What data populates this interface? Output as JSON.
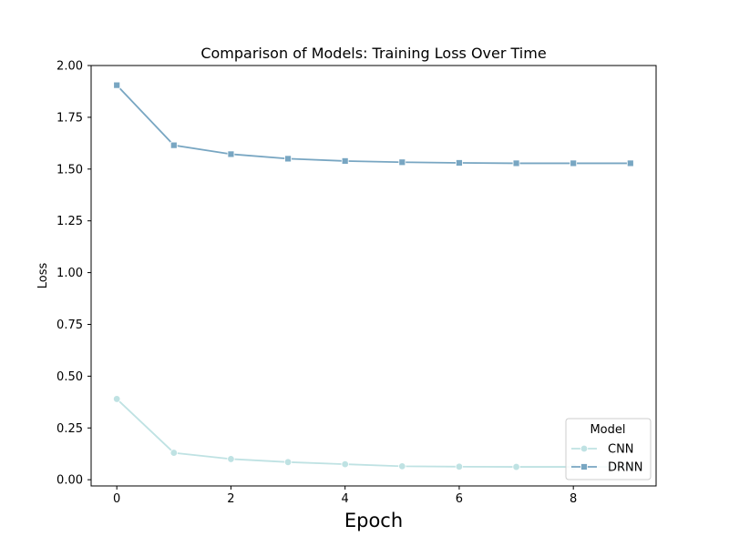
{
  "chart_data": {
    "type": "line",
    "title": "Comparison of Models: Training Loss Over Time",
    "xlabel": "Epoch",
    "ylabel": "Loss",
    "xlim": [
      -0.45,
      9.45
    ],
    "ylim": [
      -0.03,
      2.0
    ],
    "xticks": [
      0,
      2,
      4,
      6,
      8
    ],
    "xtick_labels": [
      "0",
      "2",
      "4",
      "6",
      "8"
    ],
    "yticks": [
      0.0,
      0.25,
      0.5,
      0.75,
      1.0,
      1.25,
      1.5,
      1.75,
      2.0
    ],
    "ytick_labels": [
      "0.00",
      "0.25",
      "0.50",
      "0.75",
      "1.00",
      "1.25",
      "1.50",
      "1.75",
      "2.00"
    ],
    "grid": false,
    "legend": {
      "title": "Model",
      "placement": "lower right"
    },
    "x": [
      0,
      1,
      2,
      3,
      4,
      5,
      6,
      7,
      8,
      9
    ],
    "series": [
      {
        "name": "CNN",
        "marker": "circle",
        "color": "#bfe2e3",
        "values": [
          0.39,
          0.13,
          0.1,
          0.085,
          0.075,
          0.065,
          0.063,
          0.062,
          0.062,
          0.062
        ]
      },
      {
        "name": "DRNN",
        "marker": "square",
        "color": "#78a6c2",
        "values": [
          1.905,
          1.615,
          1.572,
          1.55,
          1.539,
          1.533,
          1.53,
          1.528,
          1.528,
          1.528
        ]
      }
    ]
  }
}
